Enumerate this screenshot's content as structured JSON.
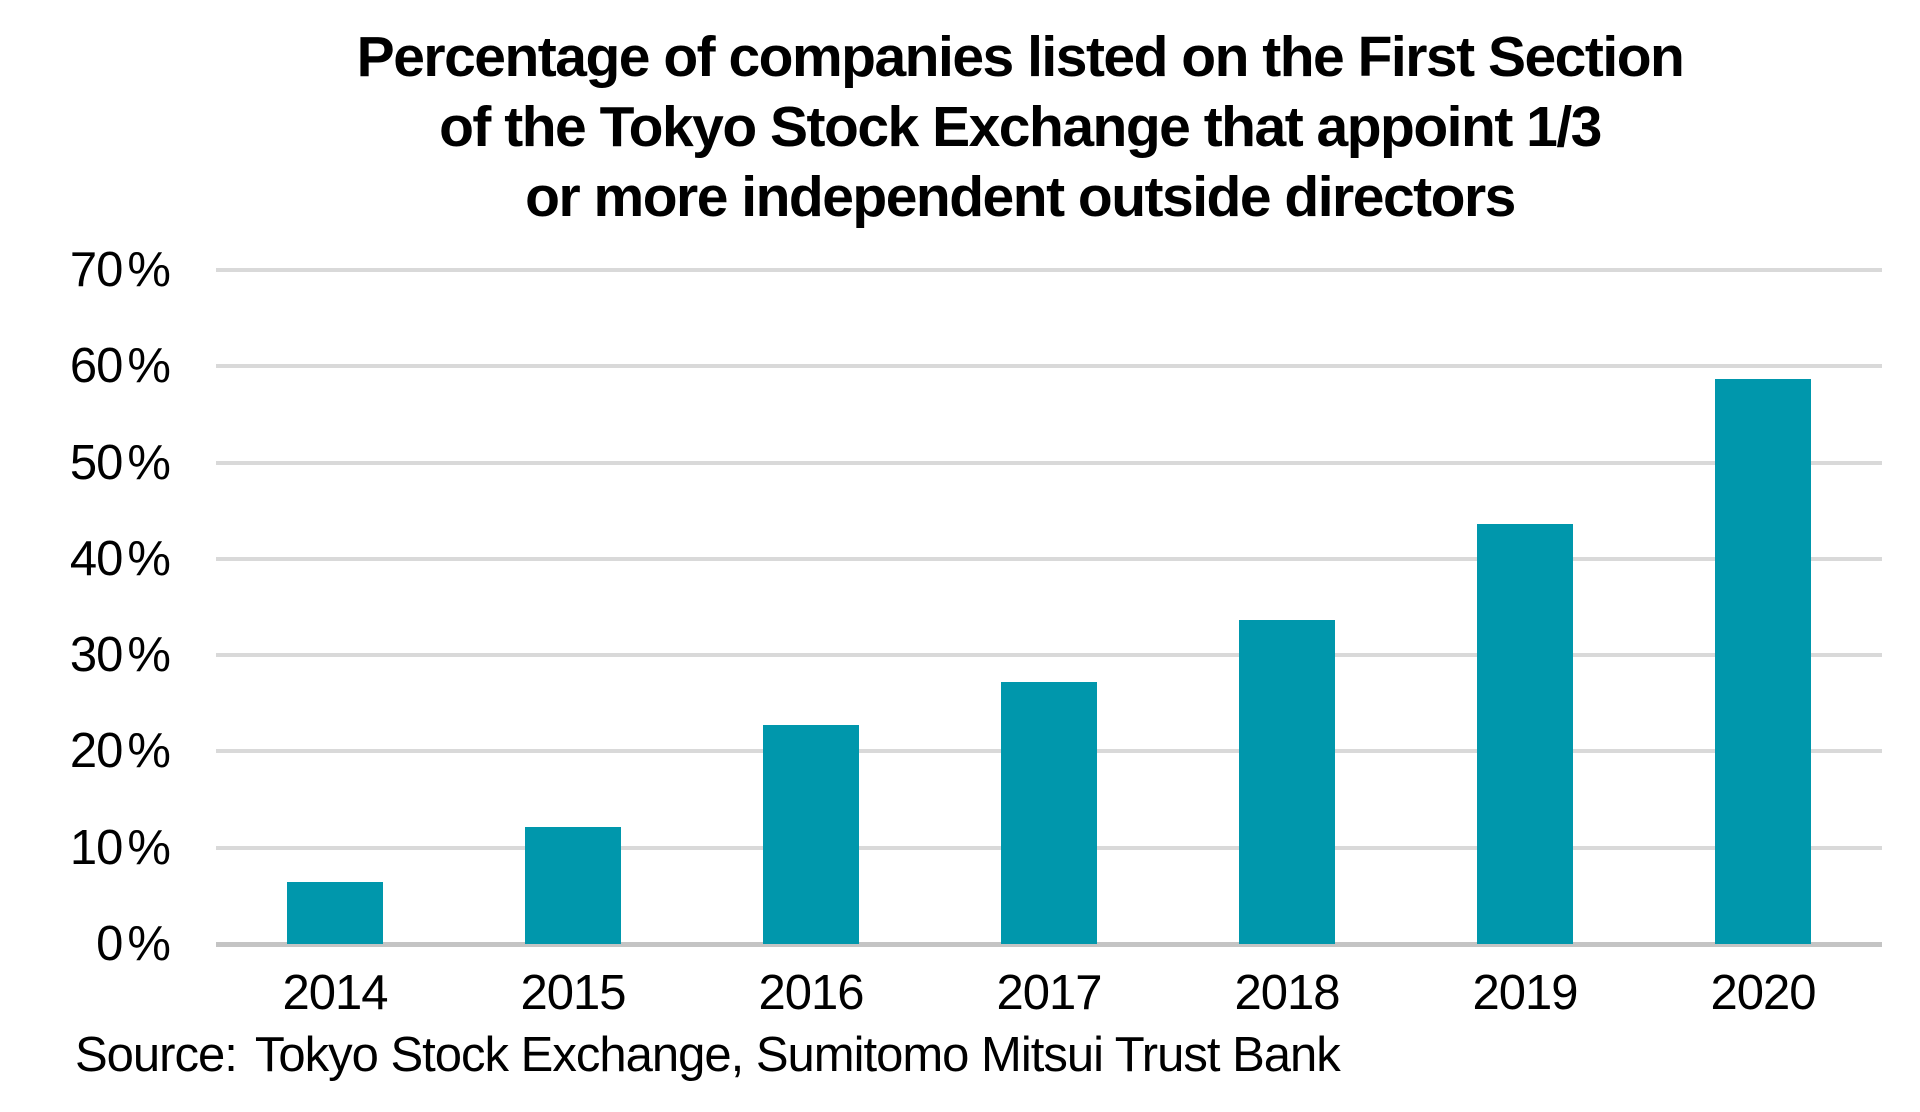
{
  "chart_data": {
    "type": "bar",
    "title": "Percentage of companies listed on the First Section of the Tokyo Stock Exchange that appoint 1/3 or more independent outside directors",
    "title_lines": [
      "Percentage of companies listed on the First Section",
      "of the Tokyo Stock Exchange that appoint 1/3",
      "or more independent outside directors"
    ],
    "categories": [
      "2014",
      "2015",
      "2016",
      "2017",
      "2018",
      "2019",
      "2020"
    ],
    "values": [
      6.4,
      12.2,
      22.7,
      27.2,
      33.6,
      43.6,
      58.7
    ],
    "unit": "percent",
    "xlabel": "",
    "ylabel": "",
    "ylim": [
      0,
      70
    ],
    "ytick_step": 10,
    "ytick_numbers": [
      "0",
      "10",
      "20",
      "30",
      "40",
      "50",
      "60",
      "70"
    ],
    "percent_suffix": "%",
    "grid": true,
    "legend_position": "none",
    "data_labels": false,
    "colors": {
      "bar": "#0097AC",
      "gridline": "#D9D9D9",
      "axis_line": "#C4C4C4",
      "text": "#000000",
      "background": "#FFFFFF"
    },
    "source": {
      "label": "Source:",
      "text": "Tokyo Stock Exchange, Sumitomo Mitsui Trust Bank"
    }
  }
}
